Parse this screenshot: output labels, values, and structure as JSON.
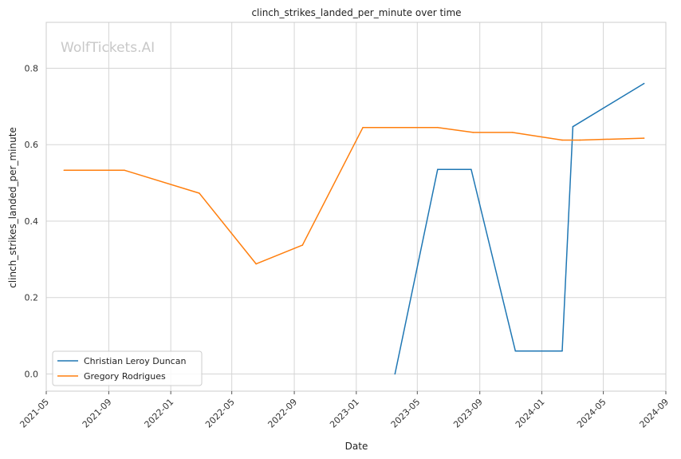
{
  "watermark": "WolfTickets.AI",
  "chart_data": {
    "type": "line",
    "title": "clinch_strikes_landed_per_minute over time",
    "xlabel": "Date",
    "ylabel": "clinch_strikes_landed_per_minute",
    "xlim": [
      "2021-05-01",
      "2024-09-01"
    ],
    "ylim": [
      -0.045,
      0.92
    ],
    "x_ticks": [
      "2021-05",
      "2021-09",
      "2022-01",
      "2022-05",
      "2022-09",
      "2023-01",
      "2023-05",
      "2023-09",
      "2024-01",
      "2024-05",
      "2024-09"
    ],
    "y_ticks": [
      0.0,
      0.2,
      0.4,
      0.6,
      0.8
    ],
    "grid": true,
    "legend_position": "lower-left",
    "series": [
      {
        "name": "Christian Leroy Duncan",
        "color": "#1f77b4",
        "points": [
          {
            "x": "2023-03-18",
            "y": 0.0
          },
          {
            "x": "2023-06-10",
            "y": 0.535
          },
          {
            "x": "2023-08-15",
            "y": 0.535
          },
          {
            "x": "2023-11-10",
            "y": 0.06
          },
          {
            "x": "2024-02-10",
            "y": 0.06
          },
          {
            "x": "2024-03-02",
            "y": 0.647
          },
          {
            "x": "2024-07-20",
            "y": 0.76
          }
        ]
      },
      {
        "name": "Gregory Rodrigues",
        "color": "#ff7f0e",
        "points": [
          {
            "x": "2021-06-05",
            "y": 0.533
          },
          {
            "x": "2021-10-02",
            "y": 0.533
          },
          {
            "x": "2022-02-26",
            "y": 0.473
          },
          {
            "x": "2022-06-18",
            "y": 0.288
          },
          {
            "x": "2022-09-17",
            "y": 0.337
          },
          {
            "x": "2023-01-14",
            "y": 0.645
          },
          {
            "x": "2023-06-10",
            "y": 0.645
          },
          {
            "x": "2023-08-19",
            "y": 0.632
          },
          {
            "x": "2023-11-04",
            "y": 0.632
          },
          {
            "x": "2024-02-10",
            "y": 0.612
          },
          {
            "x": "2024-03-16",
            "y": 0.612
          },
          {
            "x": "2024-07-20",
            "y": 0.617
          }
        ]
      }
    ]
  }
}
